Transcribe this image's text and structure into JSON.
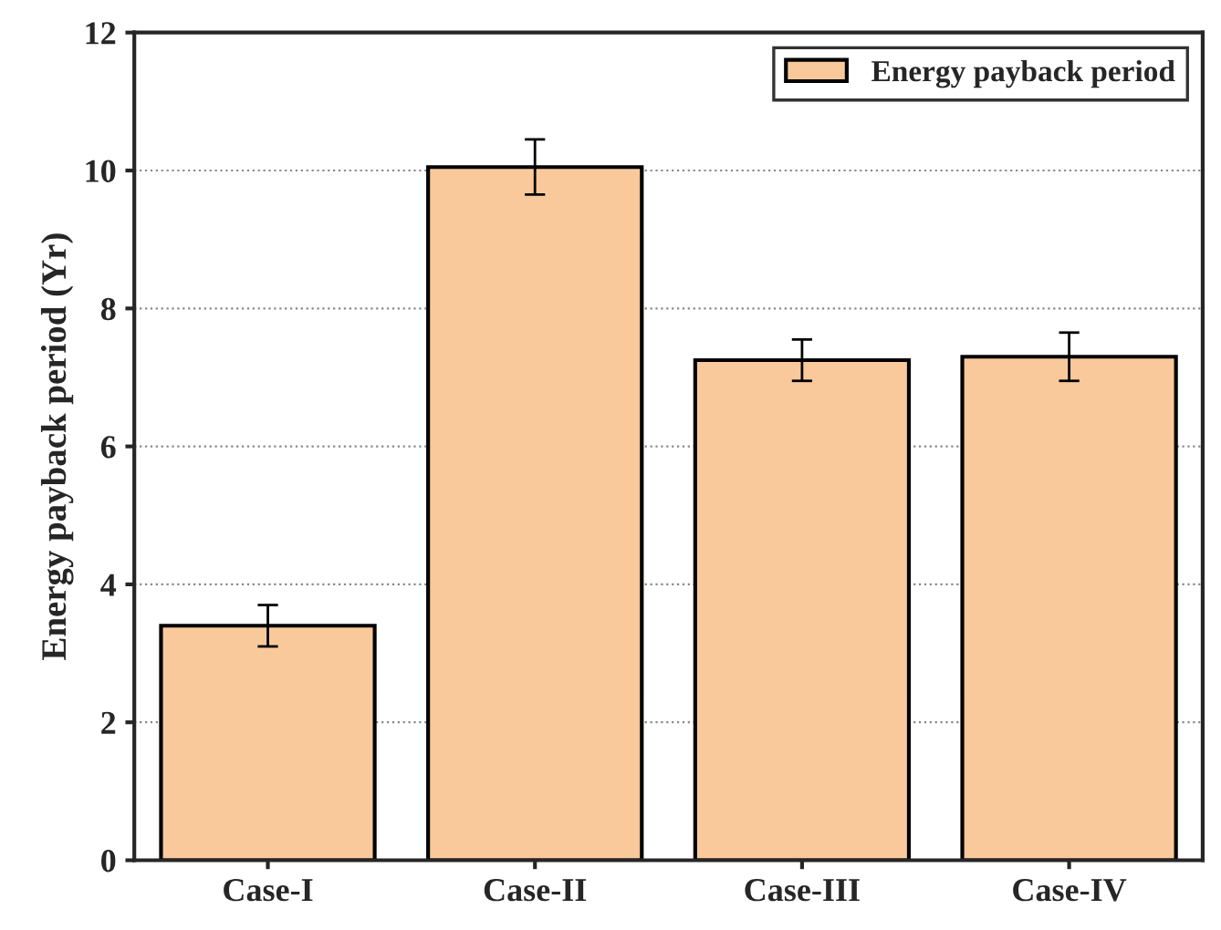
{
  "chart_data": {
    "type": "bar",
    "ylabel": "Energy payback period (Yr)",
    "categories": [
      "Case-I",
      "Case-II",
      "Case-III",
      "Case-IV"
    ],
    "series": [
      {
        "name": "Energy payback period",
        "color": "#f9c99b",
        "values": [
          3.4,
          10.05,
          7.25,
          7.3
        ],
        "errors": [
          0.3,
          0.4,
          0.3,
          0.35
        ]
      }
    ],
    "ylim": [
      0,
      12
    ],
    "yticks": [
      0,
      2,
      4,
      6,
      8,
      10,
      12
    ],
    "grid": "y",
    "legend": "top right"
  }
}
